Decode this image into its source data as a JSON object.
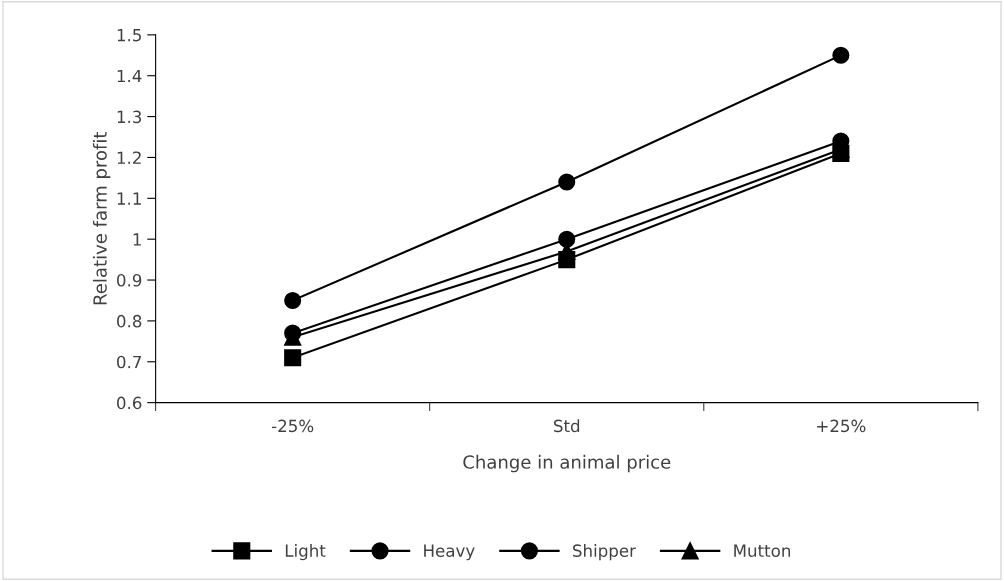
{
  "chart_data": {
    "type": "line",
    "xlabel": "Change in animal price",
    "ylabel": "Relative farm profit",
    "categories": [
      "-25%",
      "Std",
      "+25%"
    ],
    "ylim": [
      0.6,
      1.5
    ],
    "yticks": [
      0.6,
      0.7,
      0.8,
      0.9,
      1,
      1.1,
      1.2,
      1.3,
      1.4,
      1.5
    ],
    "grid": false,
    "legend": "bottom",
    "series": [
      {
        "name": "Light",
        "color": "#000000",
        "marker": "square",
        "values": [
          0.71,
          0.95,
          1.21
        ]
      },
      {
        "name": "Heavy",
        "color": "#000000",
        "marker": "circle",
        "values": [
          0.85,
          1.14,
          1.45
        ]
      },
      {
        "name": "Shipper",
        "color": "#000000",
        "marker": "circle",
        "values": [
          0.77,
          1.0,
          1.24
        ]
      },
      {
        "name": "Mutton",
        "color": "#000000",
        "marker": "triangle",
        "values": [
          0.76,
          0.97,
          1.22
        ]
      }
    ]
  }
}
